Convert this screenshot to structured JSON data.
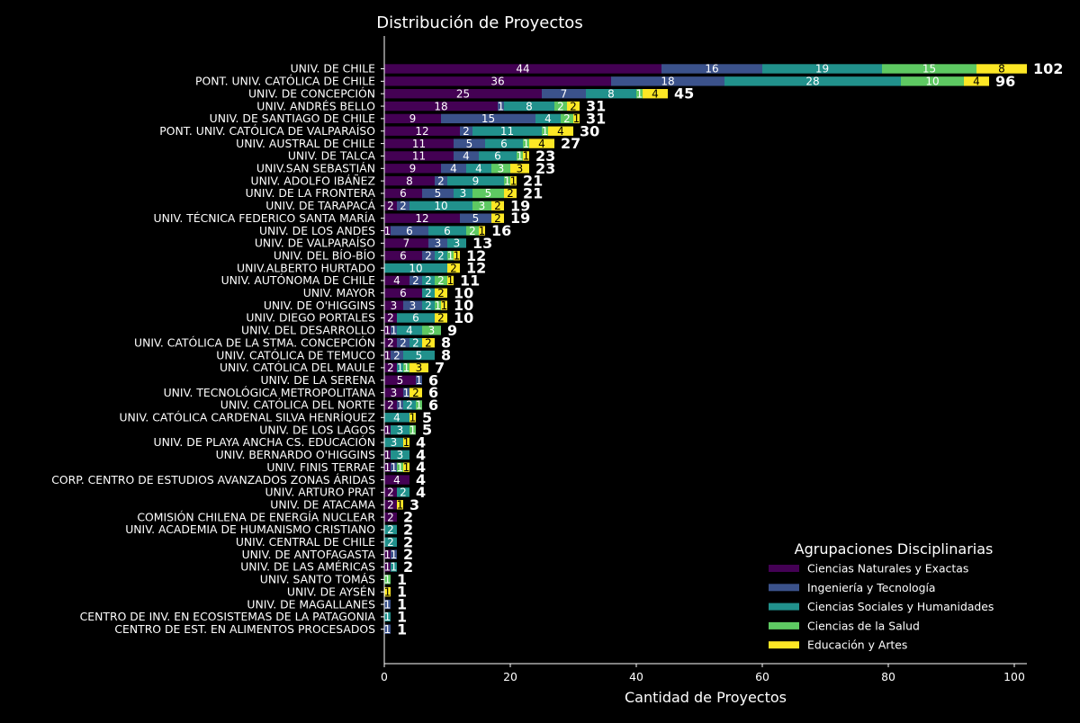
{
  "chart_data": {
    "type": "bar",
    "orientation": "horizontal",
    "stacked": true,
    "title": "Distribución de Proyectos",
    "xlabel": "Cantidad de Proyectos",
    "ylabel": "",
    "xlim": [
      0,
      102
    ],
    "xticks": [
      0,
      20,
      40,
      60,
      80,
      100
    ],
    "grid": false,
    "legend": {
      "title": "Agrupaciones Disciplinarias",
      "placement": "bottom-right"
    },
    "colors": {
      "background": "#000000",
      "text": "#ffffff"
    },
    "categories": [
      "UNIV. DE CHILE",
      "PONT. UNIV. CATÓLICA DE CHILE",
      "UNIV. DE CONCEPCIÓN",
      "UNIV. ANDRÉS BELLO",
      "UNIV. DE SANTIAGO DE CHILE",
      "PONT. UNIV. CATÓLICA DE VALPARAÍSO",
      "UNIV. AUSTRAL DE CHILE",
      "UNIV. DE TALCA",
      "UNIV.SAN SEBASTIÁN",
      "UNIV. ADOLFO IBÁÑEZ",
      "UNIV. DE LA FRONTERA",
      "UNIV. DE TARAPACÁ",
      "UNIV. TÉCNICA FEDERICO SANTA MARÍA",
      "UNIV. DE LOS ANDES",
      "UNIV. DE VALPARAÍSO",
      "UNIV. DEL BÍO-BÍO",
      "UNIV.ALBERTO HURTADO",
      "UNIV. AUTÓNOMA DE CHILE",
      "UNIV. MAYOR",
      "UNIV. DE O'HIGGINS",
      "UNIV. DIEGO PORTALES",
      "UNIV. DEL DESARROLLO",
      "UNIV. CATÓLICA DE LA STMA. CONCEPCIÓN",
      "UNIV. CATÓLICA DE TEMUCO",
      "UNIV. CATÓLICA DEL MAULE",
      "UNIV. DE LA SERENA",
      "UNIV. TECNOLÓGICA METROPOLITANA",
      "UNIV. CATÓLICA DEL NORTE",
      "UNIV. CATÓLICA CARDENAL SILVA HENRÍQUEZ",
      "UNIV. DE LOS LAGOS",
      "UNIV. DE PLAYA ANCHA CS. EDUCACIÓN",
      "UNIV. BERNARDO O'HIGGINS",
      "UNIV. FINIS TERRAE",
      "CORP. CENTRO DE ESTUDIOS AVANZADOS ZONAS ÁRIDAS",
      "UNIV. ARTURO PRAT",
      "UNIV. DE ATACAMA",
      "COMISIÓN CHILENA DE ENERGÍA NUCLEAR",
      "UNIV. ACADEMIA DE HUMANISMO CRISTIANO",
      "UNIV. CENTRAL DE CHILE",
      "UNIV. DE ANTOFAGASTA",
      "UNIV. DE LAS AMÉRICAS",
      "UNIV. SANTO TOMÁS",
      "UNIV. DE AYSÉN",
      "UNIV. DE MAGALLANES",
      "CENTRO DE INV. EN ECOSISTEMAS DE LA PATAGONIA",
      "CENTRO DE EST. EN ALIMENTOS PROCESADOS"
    ],
    "series": [
      {
        "name": "Ciencias Naturales y Exactas",
        "color": "#440154",
        "values": [
          44,
          36,
          25,
          18,
          9,
          12,
          11,
          11,
          9,
          8,
          6,
          2,
          12,
          1,
          7,
          6,
          0,
          4,
          6,
          3,
          2,
          1,
          2,
          1,
          2,
          5,
          3,
          2,
          0,
          1,
          0,
          1,
          1,
          4,
          2,
          2,
          2,
          0,
          0,
          1,
          1,
          0,
          0,
          0,
          0,
          0
        ]
      },
      {
        "name": "Ingeniería y Tecnología",
        "color": "#3b528b",
        "values": [
          16,
          18,
          7,
          1,
          15,
          2,
          5,
          4,
          4,
          2,
          5,
          2,
          5,
          6,
          3,
          2,
          0,
          2,
          0,
          3,
          0,
          1,
          2,
          2,
          0,
          1,
          1,
          1,
          0,
          0,
          0,
          0,
          1,
          0,
          0,
          0,
          0,
          0,
          0,
          1,
          0,
          0,
          0,
          1,
          0,
          1
        ]
      },
      {
        "name": "Ciencias Sociales y Humanidades",
        "color": "#21918c",
        "values": [
          19,
          28,
          8,
          8,
          4,
          11,
          6,
          6,
          4,
          9,
          3,
          10,
          0,
          6,
          3,
          2,
          10,
          2,
          2,
          2,
          6,
          4,
          2,
          5,
          1,
          0,
          0,
          2,
          4,
          3,
          3,
          3,
          0,
          0,
          2,
          0,
          0,
          2,
          2,
          0,
          1,
          0,
          0,
          0,
          1,
          0
        ]
      },
      {
        "name": "Ciencias de la Salud",
        "color": "#5ec962",
        "values": [
          15,
          10,
          1,
          2,
          2,
          1,
          1,
          1,
          3,
          1,
          5,
          3,
          0,
          2,
          0,
          1,
          0,
          2,
          0,
          1,
          0,
          3,
          0,
          0,
          1,
          0,
          0,
          1,
          0,
          1,
          0,
          0,
          1,
          0,
          0,
          0,
          0,
          0,
          0,
          0,
          0,
          1,
          0,
          0,
          0,
          0
        ]
      },
      {
        "name": "Educación y Artes",
        "color": "#fde725",
        "values": [
          8,
          4,
          4,
          2,
          1,
          4,
          4,
          1,
          3,
          1,
          2,
          2,
          2,
          1,
          0,
          1,
          2,
          1,
          2,
          1,
          2,
          0,
          2,
          0,
          3,
          0,
          2,
          0,
          1,
          0,
          1,
          0,
          1,
          0,
          0,
          1,
          0,
          0,
          0,
          0,
          0,
          0,
          1,
          0,
          0,
          0
        ]
      }
    ],
    "totals": [
      102,
      96,
      45,
      31,
      31,
      30,
      27,
      23,
      23,
      21,
      21,
      19,
      19,
      16,
      13,
      12,
      12,
      11,
      10,
      10,
      10,
      9,
      8,
      8,
      7,
      6,
      6,
      6,
      5,
      5,
      4,
      4,
      4,
      4,
      4,
      3,
      2,
      2,
      2,
      2,
      2,
      1,
      1,
      1,
      1,
      1
    ]
  }
}
